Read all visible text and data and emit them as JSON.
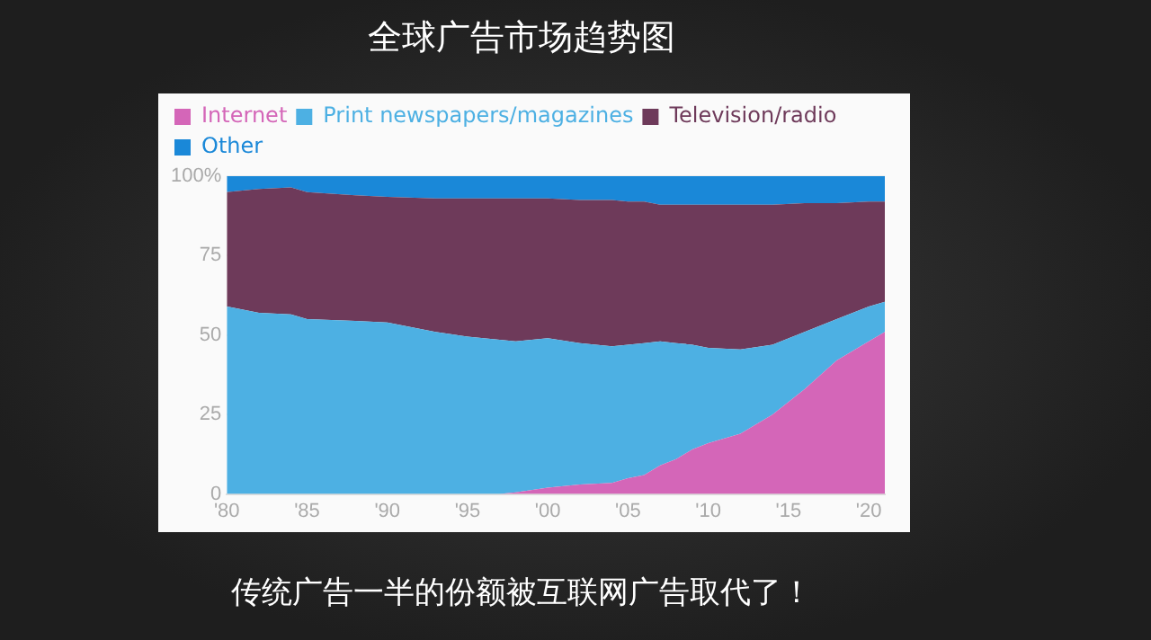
{
  "chart_data": {
    "type": "area",
    "title": "全球广告市场趋势图",
    "stacked": true,
    "legend": "top left",
    "grid": "y",
    "marker": "none",
    "annotations": [
      "传统广告一半的份额被互联网广告取代了！"
    ],
    "x": [
      1980,
      1982,
      1984,
      1985,
      1988,
      1990,
      1993,
      1995,
      1997,
      1998,
      2000,
      2002,
      2004,
      2005,
      2006,
      2007,
      2008,
      2009,
      2010,
      2012,
      2014,
      2016,
      2018,
      2020,
      2021
    ],
    "xlim": [
      1980,
      2021
    ],
    "xticks": [
      {
        "value": 1980,
        "label": "'80"
      },
      {
        "value": 1985,
        "label": "'85"
      },
      {
        "value": 1990,
        "label": "'90"
      },
      {
        "value": 1995,
        "label": "'95"
      },
      {
        "value": 2000,
        "label": "'00"
      },
      {
        "value": 2005,
        "label": "'05"
      },
      {
        "value": 2010,
        "label": "'10"
      },
      {
        "value": 2015,
        "label": "'15"
      },
      {
        "value": 2020,
        "label": "'20"
      }
    ],
    "ylim": [
      0,
      100
    ],
    "yticks": [
      0,
      25,
      50,
      75,
      {
        "value": 100,
        "label": "100%"
      }
    ],
    "series": [
      {
        "name": "Internet",
        "color": "#d466b8",
        "values": [
          0,
          0,
          0,
          0,
          0,
          0,
          0,
          0,
          0,
          0.5,
          2,
          3,
          3.5,
          5,
          6,
          9,
          11,
          14,
          16,
          19,
          25,
          33,
          42,
          48,
          51
        ]
      },
      {
        "name": "Print newspapers/magazines",
        "color": "#4db0e3",
        "values": [
          59,
          57,
          56.5,
          55,
          54.5,
          54,
          51,
          49.5,
          48.5,
          47.5,
          47,
          44.5,
          43,
          42,
          41.5,
          39,
          36.5,
          33,
          30,
          26.5,
          22,
          18,
          13,
          11,
          9.5
        ]
      },
      {
        "name": "Television/radio",
        "color": "#6e3a5a",
        "values": [
          36,
          39,
          40,
          40,
          39.5,
          39.5,
          42,
          43.5,
          44.5,
          45,
          44,
          45,
          46,
          45,
          44.5,
          43,
          43.5,
          44,
          45,
          45.5,
          44,
          40.5,
          36.5,
          33,
          31.5
        ]
      },
      {
        "name": "Other",
        "color": "#1a88d8",
        "values": [
          5,
          4,
          3.5,
          5,
          6,
          6.5,
          7,
          7,
          7,
          7,
          7,
          7.5,
          7.5,
          8,
          8,
          9,
          9,
          9,
          9,
          9,
          9,
          8.5,
          8.5,
          8,
          8
        ]
      }
    ]
  }
}
